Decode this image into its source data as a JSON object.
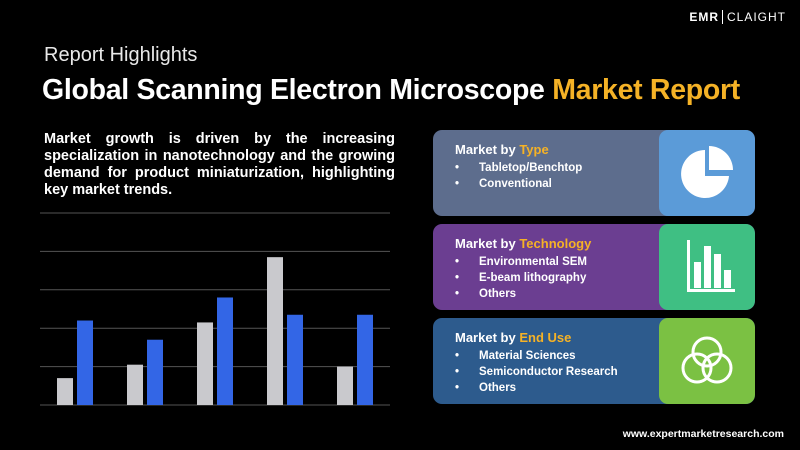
{
  "header": {
    "logo": "EMR",
    "logo_sub": "CLAIGHT",
    "kicker": "Report Highlights",
    "title_main": "Global Scanning Electron Microscope",
    "title_accent": "Market Report"
  },
  "summary": "Market growth is driven by the increasing specialization in nanotechnology and the growing demand for product miniaturization, highlighting key market trends.",
  "chart_data": {
    "type": "bar",
    "categories": [
      null,
      null,
      null,
      null,
      null
    ],
    "series": [
      {
        "color": "#c9c9cd",
        "values": [
          0.7,
          1.05,
          2.15,
          3.85,
          1.0
        ]
      },
      {
        "color": "#3366e6",
        "values": [
          2.2,
          1.7,
          2.8,
          2.35,
          2.35
        ]
      }
    ],
    "ylim": [
      0,
      5
    ],
    "yticks": [
      0,
      1,
      2,
      3,
      4,
      5
    ],
    "grid": true
  },
  "panels": [
    {
      "label": "Market by",
      "accent": "Type",
      "items": [
        "Tabletop/Benchtop",
        "Conventional"
      ]
    },
    {
      "label": "Market by",
      "accent": "Technology",
      "items": [
        "Environmental SEM",
        "E-beam lithography",
        "Others"
      ]
    },
    {
      "label": "Market by",
      "accent": "End Use",
      "items": [
        "Material Sciences",
        "Semiconductor Research",
        "Others"
      ]
    }
  ],
  "footer": "www.expertmarketresearch.com"
}
